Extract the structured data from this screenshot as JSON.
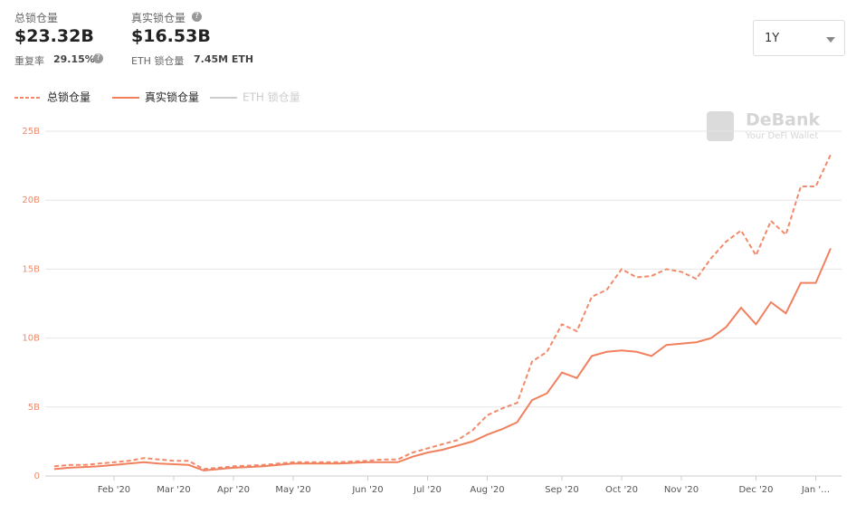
{
  "header": {
    "total_label": "总锁仓量",
    "total_value": "$23.32B",
    "dup_label": "重复率",
    "dup_value": "29.15%",
    "real_label": "真实锁仓量",
    "real_value": "$16.53B",
    "eth_label": "ETH 锁仓量",
    "eth_value": "7.45M ETH",
    "range": "1Y",
    "brand": "DeBank",
    "slogan": "Your DeFi Wallet"
  },
  "chart_data": {
    "type": "line",
    "categories": [
      null,
      null,
      null,
      null,
      "Feb '20",
      null,
      null,
      null,
      "Mar '20",
      null,
      null,
      null,
      "Apr '20",
      null,
      null,
      null,
      "May '20",
      null,
      null,
      null,
      null,
      "Jun '20",
      null,
      null,
      null,
      "Jul '20",
      null,
      null,
      null,
      "Aug '20",
      null,
      null,
      null,
      null,
      "Sep '20",
      null,
      null,
      null,
      "Oct '20",
      null,
      null,
      null,
      "Nov '20",
      null,
      null,
      null,
      null,
      "Dec '20",
      null,
      null,
      null,
      "Jan '…",
      null
    ],
    "series": [
      {
        "name": "总锁仓量",
        "color": "#f08a6a",
        "dashed": true,
        "values": [
          0.7,
          0.8,
          0.8,
          0.9,
          1.0,
          1.1,
          1.3,
          1.2,
          1.1,
          1.1,
          0.5,
          0.6,
          0.7,
          0.75,
          0.8,
          0.9,
          1.0,
          1.0,
          1.0,
          1.0,
          1.05,
          1.1,
          1.2,
          1.2,
          1.7,
          2.0,
          2.3,
          2.6,
          3.3,
          4.4,
          4.9,
          5.3,
          8.3,
          9.0,
          11.0,
          10.5,
          13.0,
          13.5,
          15.0,
          14.4,
          14.5,
          15.0,
          14.8,
          14.3,
          15.8,
          17.0,
          17.8,
          16.0,
          18.5,
          17.5,
          21.0,
          21.0,
          23.3
        ]
      },
      {
        "name": "真实锁仓量",
        "color": "#f0805e",
        "dashed": false,
        "values": [
          0.5,
          0.6,
          0.65,
          0.7,
          0.8,
          0.9,
          1.0,
          0.9,
          0.85,
          0.8,
          0.4,
          0.5,
          0.6,
          0.65,
          0.7,
          0.8,
          0.9,
          0.9,
          0.9,
          0.9,
          0.95,
          1.0,
          1.0,
          1.0,
          1.4,
          1.7,
          1.9,
          2.2,
          2.5,
          3.0,
          3.4,
          3.9,
          5.5,
          6.0,
          7.5,
          7.1,
          8.7,
          9.0,
          9.1,
          9.0,
          8.7,
          9.5,
          9.6,
          9.7,
          10.0,
          10.8,
          12.2,
          11.0,
          12.6,
          11.8,
          14.0,
          14.0,
          16.5
        ]
      }
    ],
    "inactive_series": [
      {
        "name": "ETH 锁仓量",
        "color": "#cccccc"
      }
    ],
    "ylim": [
      0,
      25
    ],
    "yticks": [
      0,
      {
        "value": 5,
        "label": "5B"
      },
      {
        "value": 10,
        "label": "10B"
      },
      {
        "value": 15,
        "label": "15B"
      },
      {
        "value": 20,
        "label": "20B"
      },
      {
        "value": 25,
        "label": "25B"
      }
    ],
    "grid": true
  }
}
